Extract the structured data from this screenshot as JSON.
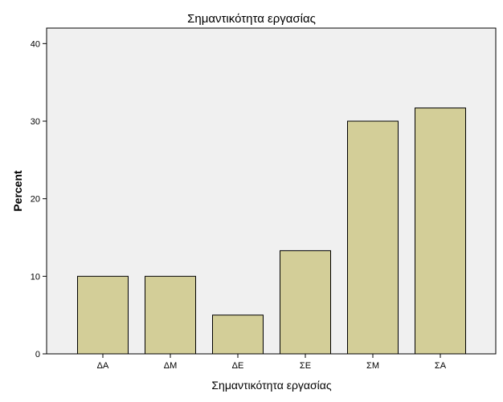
{
  "chart_data": {
    "type": "bar",
    "title": "Σημαντικότητα εργασίας",
    "xlabel": "Σημαντικότητα εργασίας",
    "ylabel": "Percent",
    "categories": [
      "ΔΑ",
      "ΔΜ",
      "ΔΕ",
      "ΣΕ",
      "ΣΜ",
      "ΣΑ"
    ],
    "values": [
      10.0,
      10.0,
      5.0,
      13.3,
      30.0,
      31.7
    ],
    "ylim": [
      0,
      42
    ],
    "yticks": [
      0,
      10,
      20,
      30,
      40
    ],
    "grid": false,
    "legend": "none",
    "colors": {
      "bar_fill": "#d3ce98",
      "bar_stroke": "#000000",
      "plot_background": "#f0f0f0"
    }
  }
}
